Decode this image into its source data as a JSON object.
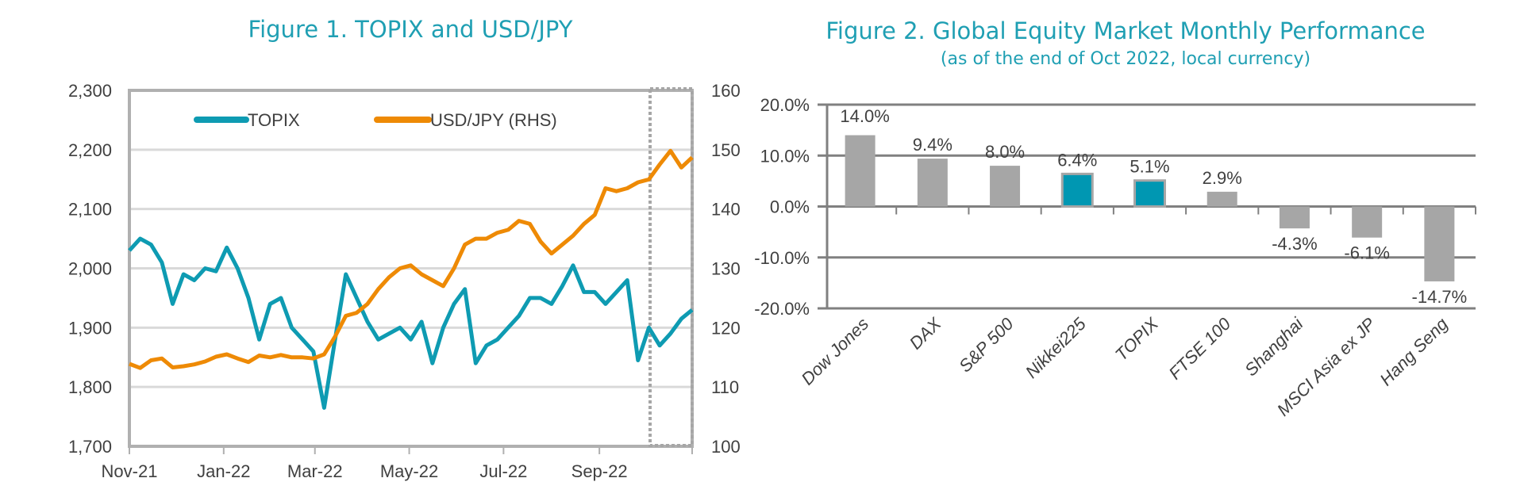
{
  "chart_data": [
    {
      "type": "line",
      "title": "Figure 1. TOPIX and USD/JPY",
      "x_tick_labels": [
        "Nov-21",
        "Jan-22",
        "Mar-22",
        "May-22",
        "Jul-22",
        "Sep-22"
      ],
      "y_left": {
        "ticks": [
          "1,700",
          "1,800",
          "1,900",
          "2,000",
          "2,100",
          "2,200",
          "2,300"
        ],
        "range": [
          1700,
          2300
        ]
      },
      "y_right": {
        "ticks": [
          "100",
          "110",
          "120",
          "130",
          "140",
          "150",
          "160"
        ],
        "range": [
          100,
          160
        ]
      },
      "grid": true,
      "legend_placement": "top",
      "highlight": "dotted box around Oct-22",
      "x": [
        "2021-11-01",
        "2021-11-08",
        "2021-11-15",
        "2021-11-22",
        "2021-11-29",
        "2021-12-06",
        "2021-12-13",
        "2021-12-20",
        "2021-12-27",
        "2022-01-03",
        "2022-01-10",
        "2022-01-17",
        "2022-01-24",
        "2022-01-31",
        "2022-02-07",
        "2022-02-14",
        "2022-02-21",
        "2022-02-28",
        "2022-03-07",
        "2022-03-14",
        "2022-03-21",
        "2022-03-28",
        "2022-04-04",
        "2022-04-11",
        "2022-04-18",
        "2022-04-25",
        "2022-05-02",
        "2022-05-09",
        "2022-05-16",
        "2022-05-23",
        "2022-05-30",
        "2022-06-06",
        "2022-06-13",
        "2022-06-20",
        "2022-06-27",
        "2022-07-04",
        "2022-07-11",
        "2022-07-18",
        "2022-07-25",
        "2022-08-01",
        "2022-08-08",
        "2022-08-15",
        "2022-08-22",
        "2022-08-29",
        "2022-09-05",
        "2022-09-12",
        "2022-09-19",
        "2022-09-26",
        "2022-10-03",
        "2022-10-10",
        "2022-10-17",
        "2022-10-24",
        "2022-10-31"
      ],
      "series": [
        {
          "name": "TOPIX",
          "axis": "left",
          "color": "#0e9bb2",
          "values": [
            2030,
            2050,
            2040,
            2010,
            1940,
            1990,
            1980,
            2000,
            1995,
            2035,
            2000,
            1950,
            1880,
            1940,
            1950,
            1900,
            1880,
            1860,
            1765,
            1880,
            1990,
            1950,
            1910,
            1880,
            1890,
            1900,
            1880,
            1910,
            1840,
            1900,
            1940,
            1965,
            1840,
            1870,
            1880,
            1900,
            1920,
            1950,
            1950,
            1940,
            1970,
            2005,
            1960,
            1960,
            1940,
            1960,
            1980,
            1845,
            1900,
            1870,
            1890,
            1915,
            1930
          ]
        },
        {
          "name": "USD/JPY (RHS)",
          "axis": "right",
          "color": "#ee8a05",
          "values": [
            113.9,
            113.2,
            114.5,
            114.8,
            113.3,
            113.5,
            113.8,
            114.3,
            115.1,
            115.5,
            114.8,
            114.2,
            115.3,
            115.0,
            115.4,
            115.0,
            115.0,
            114.8,
            115.5,
            118.5,
            122.0,
            122.5,
            124.0,
            126.5,
            128.5,
            130.0,
            130.5,
            129.0,
            128.0,
            127.0,
            130.0,
            134.0,
            135.0,
            135.0,
            136.0,
            136.5,
            138.0,
            137.5,
            134.5,
            132.5,
            134.0,
            135.5,
            137.5,
            139.0,
            143.5,
            143.0,
            143.5,
            144.5,
            145.0,
            147.5,
            149.8,
            147.0,
            148.7
          ]
        }
      ]
    },
    {
      "type": "bar",
      "title": "Figure 2. Global Equity Market Monthly Performance",
      "subtitle": "(as of the end of Oct 2022, local currency)",
      "categories": [
        "Dow Jones",
        "DAX",
        "S&P 500",
        "Nikkei225",
        "TOPIX",
        "FTSE 100",
        "Shanghai",
        "MSCI Asia ex JP",
        "Hang Seng"
      ],
      "values": [
        14.0,
        9.4,
        8.0,
        6.4,
        5.1,
        2.9,
        -4.3,
        -6.1,
        -14.7
      ],
      "data_labels": [
        "14.0%",
        "9.4%",
        "8.0%",
        "6.4%",
        "5.1%",
        "2.9%",
        "-4.3%",
        "-6.1%",
        "-14.7%"
      ],
      "highlighted": [
        "Nikkei225",
        "TOPIX"
      ],
      "colors": {
        "default": "#a6a6a6",
        "highlight": "#0097b2"
      },
      "y_ticks": [
        "-20.0%",
        "-10.0%",
        "0.0%",
        "10.0%",
        "20.0%"
      ],
      "ylim": [
        -20,
        20
      ],
      "grid": true
    }
  ]
}
